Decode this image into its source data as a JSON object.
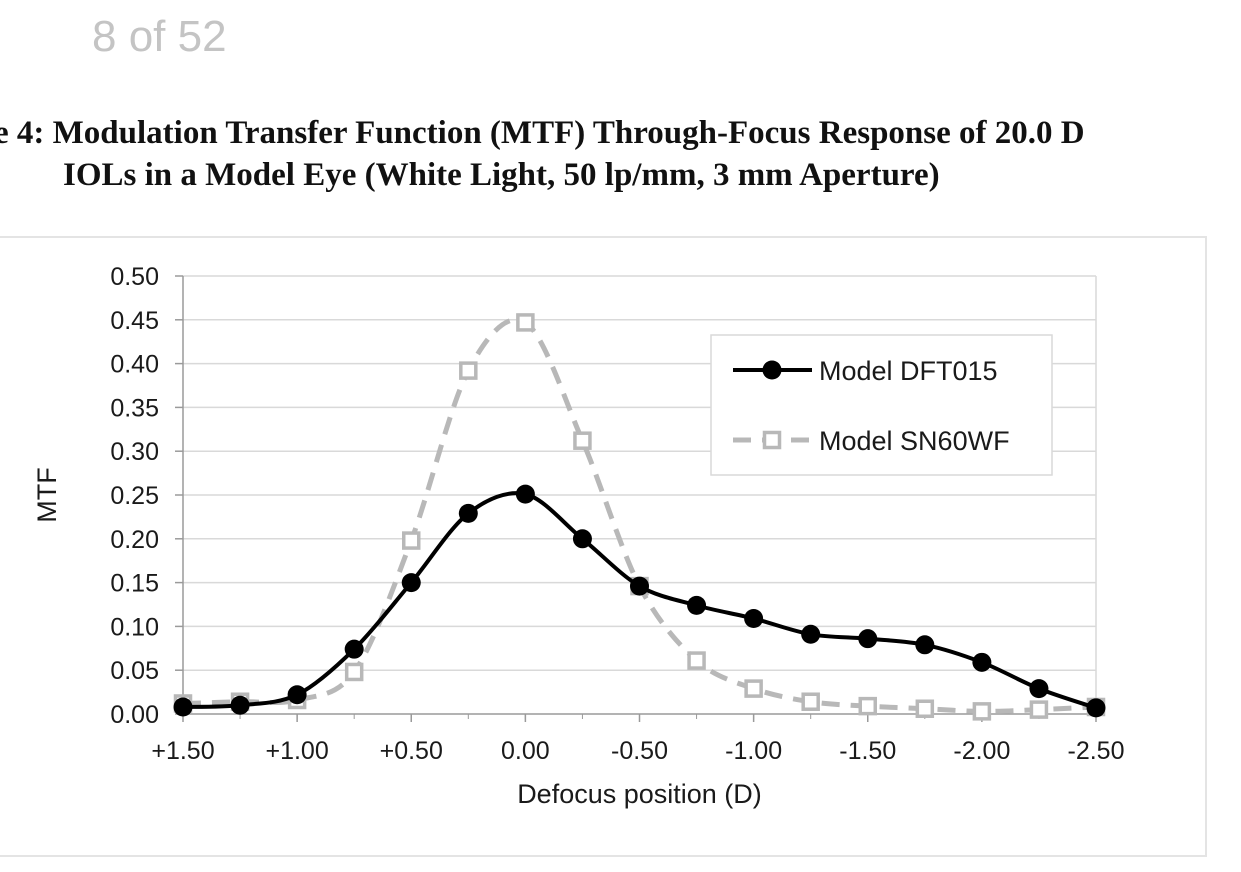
{
  "page_indicator": "8 of 52",
  "figure_title": {
    "line1": "e 4: Modulation Transfer Function (MTF) Through-Focus Response of 20.0 D",
    "line2": "IOLs in a Model Eye (White Light, 50 lp/mm, 3 mm Aperture)"
  },
  "chart_data": {
    "type": "line",
    "xlabel": "Defocus position (D)",
    "ylabel": "MTF",
    "x": [
      1.5,
      1.25,
      1.0,
      0.75,
      0.5,
      0.25,
      0.0,
      -0.25,
      -0.5,
      -0.75,
      -1.0,
      -1.25,
      -1.5,
      -1.75,
      -2.0,
      -2.25,
      -2.5
    ],
    "x_tick_values": [
      1.5,
      1.0,
      0.5,
      0.0,
      -0.5,
      -1.0,
      -1.5,
      -2.0,
      -2.5
    ],
    "x_tick_labels": [
      "+1.50",
      "+1.00",
      "+0.50",
      "0.00",
      "-0.50",
      "-1.00",
      "-1.50",
      "-2.00",
      "-2.50"
    ],
    "xlim": [
      1.5,
      -2.5
    ],
    "y_tick_labels": [
      "0.00",
      "0.05",
      "0.10",
      "0.15",
      "0.20",
      "0.25",
      "0.30",
      "0.35",
      "0.40",
      "0.45",
      "0.50"
    ],
    "ylim": [
      0,
      0.5
    ],
    "grid": "horizontal",
    "legend_position": "top-right",
    "series": [
      {
        "name": "Model DFT015",
        "color": "#000000",
        "style": "solid",
        "marker": "filled-circle",
        "values": [
          0.008,
          0.01,
          0.022,
          0.074,
          0.15,
          0.229,
          0.251,
          0.2,
          0.146,
          0.124,
          0.109,
          0.091,
          0.086,
          0.079,
          0.059,
          0.029,
          0.007
        ]
      },
      {
        "name": "Model SN60WF",
        "color": "#b8b8b8",
        "style": "dashed",
        "marker": "open-square",
        "values": [
          0.012,
          0.014,
          0.016,
          0.048,
          0.198,
          0.392,
          0.447,
          0.312,
          0.146,
          0.061,
          0.029,
          0.014,
          0.009,
          0.006,
          0.003,
          0.005,
          0.008
        ]
      }
    ]
  }
}
